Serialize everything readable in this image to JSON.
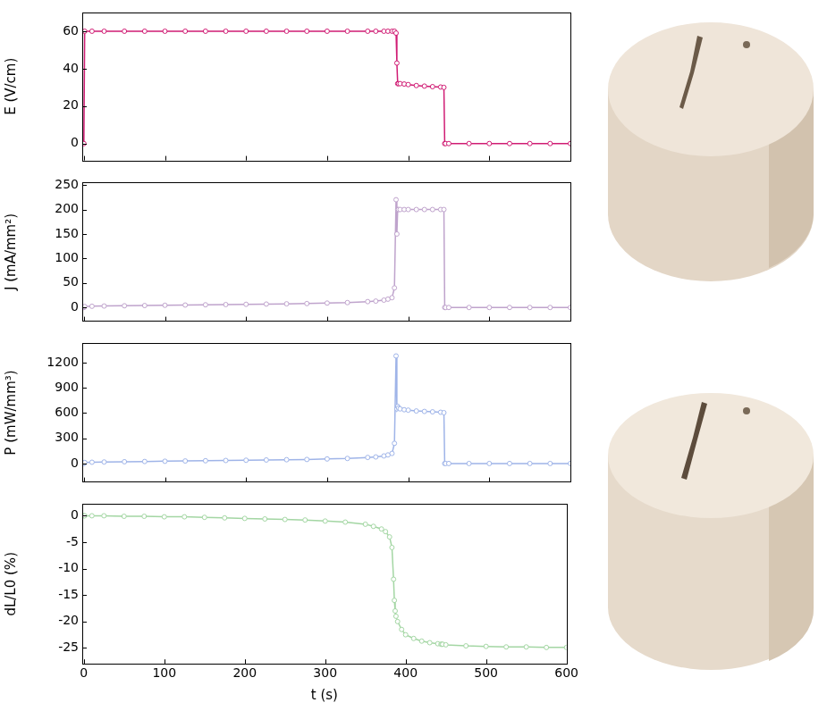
{
  "chart_data": [
    {
      "type": "line",
      "y_label": "E (V/cm)",
      "color": "#d01c74",
      "marker": "circle",
      "line_style": "solid",
      "grid": false,
      "tick_labels": "y",
      "x": [
        0,
        1,
        10,
        25,
        50,
        75,
        100,
        125,
        150,
        175,
        200,
        225,
        250,
        275,
        300,
        325,
        350,
        360,
        370,
        375,
        380,
        383,
        385,
        386,
        387,
        388,
        390,
        395,
        400,
        410,
        420,
        430,
        440,
        444,
        445,
        446,
        450,
        475,
        500,
        525,
        550,
        575,
        600
      ],
      "values": [
        0,
        60,
        60,
        60,
        60,
        60,
        60,
        60,
        60,
        60,
        60,
        60,
        60,
        60,
        60,
        60,
        60,
        60,
        60,
        60,
        60,
        60,
        59,
        43,
        32,
        32,
        32,
        31.8,
        31.5,
        31,
        30.7,
        30.4,
        30.2,
        30,
        0,
        0,
        0,
        0,
        0,
        0,
        0,
        0,
        0
      ],
      "xlim": [
        -2,
        600
      ],
      "xticks": [
        0,
        100,
        200,
        300,
        400,
        500,
        600
      ],
      "ylim": [
        -9,
        70
      ],
      "yticks": [
        0,
        20,
        40,
        60
      ]
    },
    {
      "type": "line",
      "y_label": "J (mA/mm²)",
      "color": "#bfa3cc",
      "marker": "circle",
      "line_style": "solid",
      "grid": false,
      "tick_labels": "y",
      "x": [
        0,
        1,
        10,
        25,
        50,
        75,
        100,
        125,
        150,
        175,
        200,
        225,
        250,
        275,
        300,
        325,
        350,
        360,
        370,
        375,
        380,
        383,
        385,
        386,
        387,
        388,
        390,
        395,
        400,
        410,
        420,
        430,
        440,
        444,
        445,
        446,
        450,
        475,
        500,
        525,
        550,
        575,
        600
      ],
      "values": [
        0,
        2,
        2.5,
        3,
        3.5,
        4,
        4.5,
        5,
        5.5,
        6,
        6.5,
        7,
        7.5,
        8,
        9,
        10,
        12,
        13,
        15,
        17,
        20,
        40,
        220,
        150,
        200,
        200,
        200,
        200,
        200,
        200,
        200,
        200,
        200,
        200,
        0,
        0,
        0,
        0,
        0,
        0,
        0,
        0,
        0
      ],
      "xlim": [
        -2,
        600
      ],
      "xticks": [
        0,
        100,
        200,
        300,
        400,
        500,
        600
      ],
      "ylim": [
        -28,
        255
      ],
      "yticks": [
        0,
        50,
        100,
        150,
        200,
        250
      ]
    },
    {
      "type": "line",
      "y_label": "P (mW/mm³)",
      "color": "#9fb4e8",
      "marker": "circle",
      "line_style": "solid",
      "grid": false,
      "tick_labels": "y",
      "x": [
        0,
        1,
        10,
        25,
        50,
        75,
        100,
        125,
        150,
        175,
        200,
        225,
        250,
        275,
        300,
        325,
        350,
        360,
        370,
        375,
        380,
        383,
        385,
        386,
        387,
        388,
        390,
        395,
        400,
        410,
        420,
        430,
        440,
        444,
        445,
        446,
        450,
        475,
        500,
        525,
        550,
        575,
        600
      ],
      "values": [
        0,
        12,
        15,
        18,
        21,
        24,
        27,
        30,
        33,
        36,
        39,
        42,
        45,
        48,
        54,
        60,
        72,
        78,
        90,
        102,
        120,
        240,
        1280,
        650,
        680,
        660,
        650,
        640,
        635,
        625,
        620,
        615,
        610,
        605,
        0,
        0,
        0,
        0,
        0,
        0,
        0,
        0,
        0
      ],
      "xlim": [
        -2,
        600
      ],
      "xticks": [
        0,
        100,
        200,
        300,
        400,
        500,
        600
      ],
      "ylim": [
        -220,
        1430
      ],
      "yticks": [
        0,
        300,
        600,
        900,
        1200
      ]
    },
    {
      "type": "line",
      "y_label": "dL/L0 (%)",
      "x_label": "t (s)",
      "color": "#a3d6a3",
      "marker": "circle",
      "line_style": "solid",
      "grid": false,
      "x": [
        0,
        1,
        10,
        25,
        50,
        75,
        100,
        125,
        150,
        175,
        200,
        225,
        250,
        275,
        300,
        325,
        350,
        360,
        370,
        375,
        380,
        383,
        385,
        386,
        387,
        388,
        390,
        395,
        400,
        410,
        420,
        430,
        440,
        444,
        445,
        446,
        450,
        475,
        500,
        525,
        550,
        575,
        600
      ],
      "values": [
        0,
        0,
        0,
        0,
        -0.1,
        -0.1,
        -0.2,
        -0.2,
        -0.3,
        -0.4,
        -0.5,
        -0.6,
        -0.7,
        -0.8,
        -1,
        -1.2,
        -1.6,
        -2,
        -2.5,
        -3,
        -4,
        -6,
        -12,
        -16,
        -18,
        -19,
        -20,
        -21.5,
        -22.5,
        -23.2,
        -23.7,
        -24,
        -24.2,
        -24.3,
        -24.3,
        -24.3,
        -24.4,
        -24.6,
        -24.7,
        -24.8,
        -24.8,
        -24.9,
        -24.9
      ],
      "xlim": [
        -2,
        600
      ],
      "xticks": [
        0,
        100,
        200,
        300,
        400,
        500,
        600
      ],
      "ylim": [
        -28,
        2.2
      ],
      "yticks": [
        -25,
        -20,
        -15,
        -10,
        -5,
        0
      ]
    }
  ]
}
